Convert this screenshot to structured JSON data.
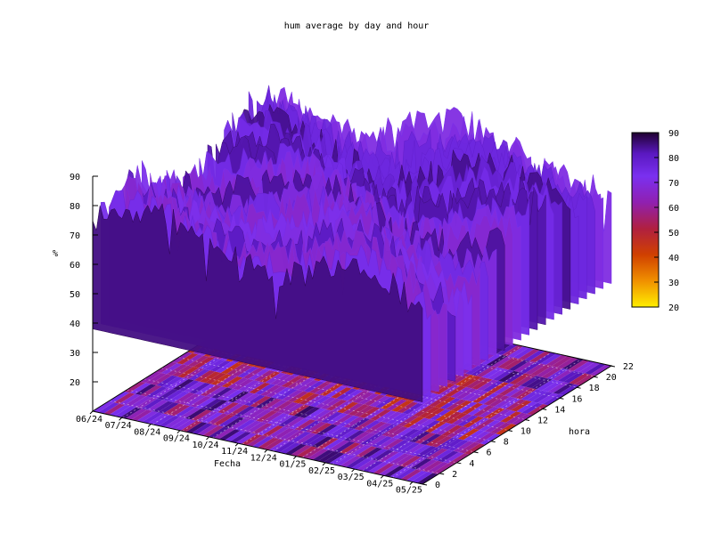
{
  "chart_data": {
    "type": "surface3d",
    "title": "hum average by day and hour",
    "xlabel": "Fecha",
    "ylabel": "hora",
    "zlabel": "%",
    "x_ticks": [
      "06/24",
      "07/24",
      "08/24",
      "09/24",
      "10/24",
      "11/24",
      "12/24",
      "01/25",
      "02/25",
      "03/25",
      "04/25",
      "05/25"
    ],
    "y_ticks": [
      "0",
      "2",
      "4",
      "6",
      "8",
      "10",
      "12",
      "14",
      "16",
      "18",
      "20",
      "22"
    ],
    "z_ticks": [
      "20",
      "30",
      "40",
      "50",
      "60",
      "70",
      "80",
      "90"
    ],
    "zlim": [
      10,
      90
    ],
    "colorbar": {
      "ticks": [
        "20",
        "30",
        "40",
        "50",
        "60",
        "70",
        "80",
        "90"
      ],
      "range": [
        20,
        90
      ],
      "palette": [
        "#ffee00",
        "#e08000",
        "#c03000",
        "#a01070",
        "#8a25d0",
        "#7a30f0",
        "#4a10a0",
        "#200030"
      ]
    },
    "legend": "right",
    "grid": true
  }
}
